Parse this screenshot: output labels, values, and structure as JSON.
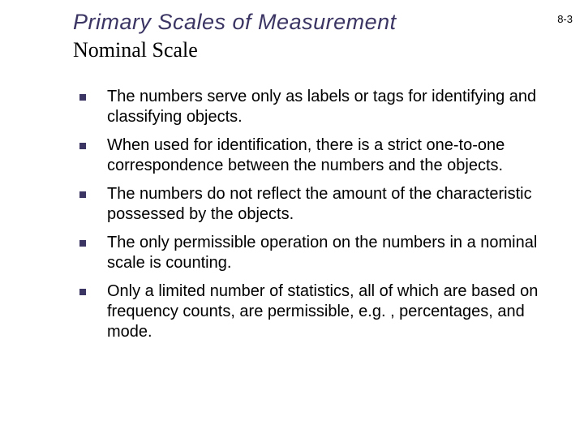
{
  "colors": {
    "title_color": "#3b3564",
    "text_color": "#000000",
    "bullet_color": "#3b3564",
    "background": "#ffffff"
  },
  "typography": {
    "title_font": "Verdana",
    "title_style": "italic",
    "title_size_pt": 27,
    "subtitle_font": "Times New Roman",
    "subtitle_size_pt": 26,
    "body_font": "Verdana",
    "body_size_pt": 20
  },
  "header": {
    "title": "Primary Scales of Measurement",
    "page_number": "8-3",
    "subtitle": "Nominal Scale"
  },
  "bullets": [
    "The numbers serve only as labels or tags for identifying and classifying objects.",
    "When used for identification, there is a strict one-to-one correspondence between the numbers and the objects.",
    "The numbers do not reflect the amount of the characteristic possessed by the objects.",
    "The only permissible operation on the numbers in a nominal scale is counting.",
    "Only a limited number of statistics, all of which are based on frequency counts, are permissible, e.g. , percentages, and mode."
  ]
}
